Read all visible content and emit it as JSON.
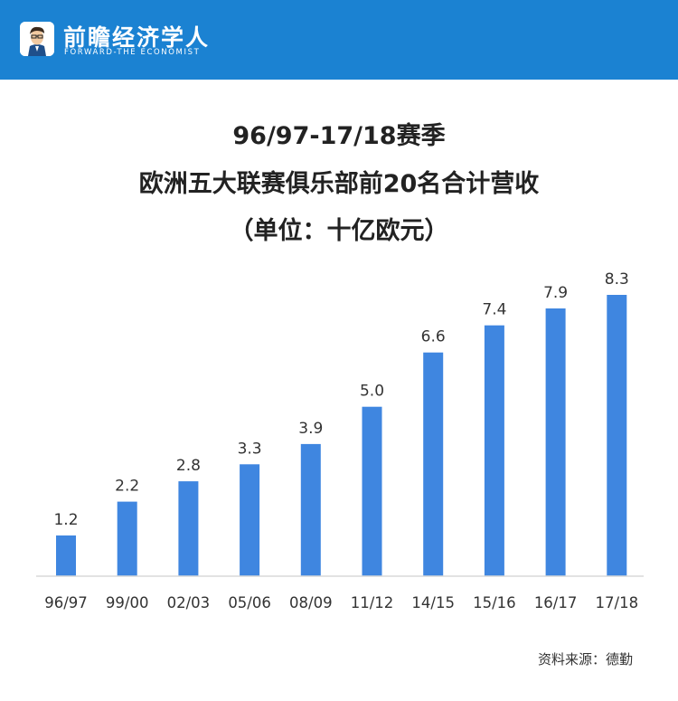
{
  "header": {
    "brand": "前瞻经济学人",
    "brand_sub": "FORWARD-THE ECONOMIST",
    "logo": "economist-avatar-logo",
    "bg_color": "#1b82d2"
  },
  "chart_data": {
    "type": "bar",
    "title_lines": [
      "96/97-17/18赛季",
      "欧洲五大联赛俱乐部前20名合计营收",
      "（单位：十亿欧元）"
    ],
    "categories": [
      "96/97",
      "99/00",
      "02/03",
      "05/06",
      "08/09",
      "11/12",
      "14/15",
      "15/16",
      "16/17",
      "17/18"
    ],
    "values": [
      1.2,
      2.2,
      2.8,
      3.3,
      3.9,
      5.0,
      6.6,
      7.4,
      7.9,
      8.3
    ],
    "value_labels": [
      "1.2",
      "2.2",
      "2.8",
      "3.3",
      "3.9",
      "5.0",
      "6.6",
      "7.4",
      "7.9",
      "8.3"
    ],
    "ylim": [
      0,
      8.3
    ],
    "bar_color": "#3f86e0",
    "grid": false,
    "legend": "none"
  },
  "source": "资料来源：德勤"
}
